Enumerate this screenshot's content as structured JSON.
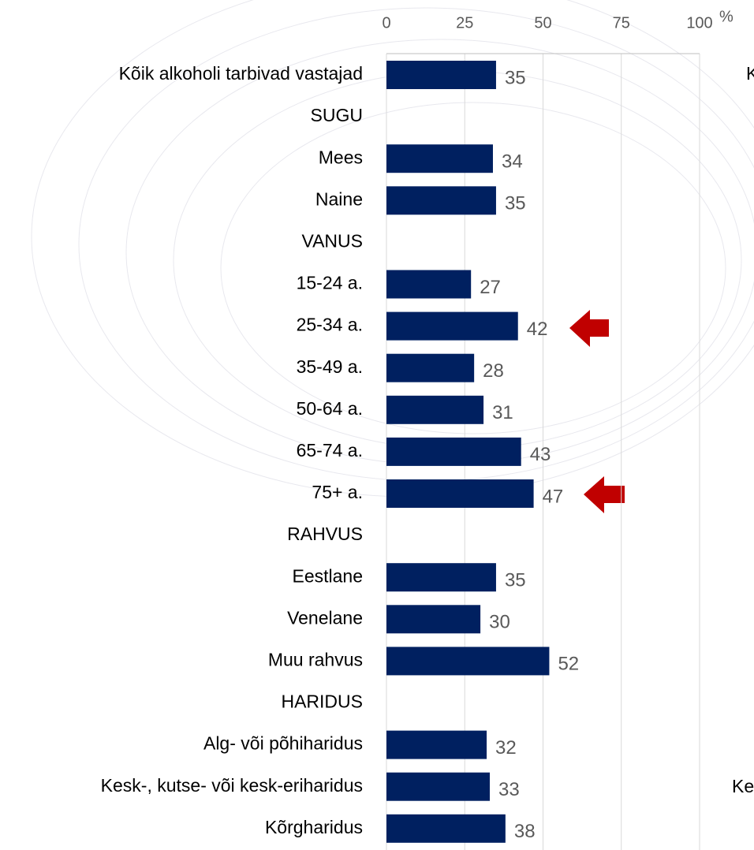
{
  "chart_data": {
    "type": "bar",
    "orientation": "horizontal",
    "xlabel": "%",
    "categories": [
      "Kõik alkoholi tarbivad vastajad",
      "SUGU",
      "Mees",
      "Naine",
      "VANUS",
      "15-24 a.",
      "25-34 a.",
      "35-49 a.",
      "50-64 a.",
      "65-74 a.",
      "75+ a.",
      "RAHVUS",
      "Eestlane",
      "Venelane",
      "Muu rahvus",
      "HARIDUS",
      "Alg- või põhiharidus",
      "Kesk-, kutse- või kesk-eriharidus",
      "Kõrgharidus"
    ],
    "values": [
      35,
      null,
      34,
      35,
      null,
      27,
      42,
      28,
      31,
      43,
      47,
      null,
      35,
      30,
      52,
      null,
      32,
      33,
      38
    ],
    "color": "#002060",
    "xlim": [
      0,
      100
    ],
    "xticks": [
      0,
      25,
      50,
      75,
      100
    ],
    "grid": true,
    "annotations": [
      "K",
      "Ke"
    ]
  }
}
